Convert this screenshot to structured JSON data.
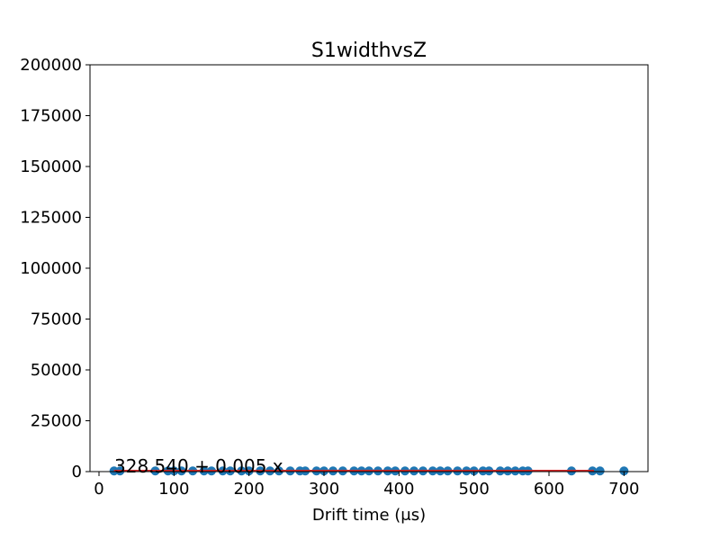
{
  "chart_data": {
    "type": "scatter",
    "title": "S1widthvsZ",
    "xlabel": "Drift time (μs)",
    "ylabel": "",
    "xlim": [
      -12,
      732
    ],
    "ylim": [
      0,
      200000
    ],
    "xticks": [
      0,
      100,
      200,
      300,
      400,
      500,
      600,
      700
    ],
    "xtick_labels": [
      "0",
      "100",
      "200",
      "300",
      "400",
      "500",
      "600",
      "700"
    ],
    "yticks": [
      0,
      25000,
      50000,
      75000,
      100000,
      125000,
      150000,
      175000,
      200000
    ],
    "ytick_labels": [
      "0",
      "25000",
      "50000",
      "75000",
      "100000",
      "125000",
      "150000",
      "175000",
      "200000"
    ],
    "grid": false,
    "annotation": "328.540 + 0.005 x",
    "colors": {
      "points": "#1f77b4",
      "fit": "#d62728"
    },
    "series": [
      {
        "marker": "o",
        "x": [
          20,
          28,
          75,
          92,
          100,
          110,
          125,
          140,
          150,
          165,
          175,
          190,
          200,
          215,
          228,
          240,
          255,
          268,
          275,
          290,
          300,
          312,
          325,
          340,
          350,
          360,
          372,
          385,
          395,
          408,
          420,
          432,
          445,
          455,
          465,
          478,
          490,
          500,
          512,
          520,
          535,
          545,
          555,
          565,
          572,
          630,
          658,
          668,
          700
        ],
        "y": [
          330,
          330,
          330,
          330,
          330,
          330,
          330,
          330,
          330,
          330,
          330,
          330,
          330,
          330,
          330,
          330,
          330,
          330,
          330,
          330,
          330,
          330,
          330,
          330,
          330,
          330,
          330,
          330,
          330,
          330,
          330,
          330,
          330,
          330,
          330,
          330,
          330,
          330,
          330,
          330,
          330,
          330,
          330,
          330,
          330,
          330,
          330,
          330,
          330
        ]
      },
      {
        "type": "line",
        "x": [
          20,
          660
        ],
        "y": [
          328.64,
          331.84
        ]
      }
    ]
  }
}
